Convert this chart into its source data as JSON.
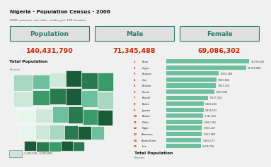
{
  "title": "Nigeria - Population Census - 2006",
  "subtitle": "2006, persons, sex ratio - males per 100 females",
  "header_labels": [
    "Population",
    "Male",
    "Female"
  ],
  "header_values": [
    "140,431,790",
    "71,345,488",
    "69,086,302"
  ],
  "header_bg": "#e0e0e0",
  "header_fg": "#2e7d6e",
  "value_fg": "#cc2200",
  "section_title": "Total Population",
  "section_subtitle": "Persons",
  "bar_title": "Total Population",
  "bar_subtitle": "Persons",
  "bar_color": "#6dbfa0",
  "bar_labels": [
    "Kano",
    "Lagos",
    "Kaduna",
    "Oyo",
    "Katsina",
    "Rivers",
    "Bauchi",
    "Borno",
    "Jigawa",
    "Benue",
    "Delta",
    "Niger",
    "Anambra",
    "Akwa Ibom",
    "Imo"
  ],
  "bar_numbers": [
    "13,076,892",
    "12,550,598",
    "8,252,366",
    "7,840,864",
    "7,831,319",
    "7,503,924",
    "6,537,314",
    "5,860,183",
    "5,828,163",
    "5,741,815",
    "5,663,362",
    "5,556,247",
    "5,527,809",
    "5,482,177",
    "5,408,756"
  ],
  "bar_values": [
    13076892,
    12550598,
    8252366,
    7840864,
    7831319,
    7503924,
    6537314,
    5860183,
    5828163,
    5741815,
    5663362,
    5556247,
    5527809,
    5482177,
    5408756
  ],
  "map_colors": [
    "#1a5c3a",
    "#2a7a50",
    "#3a9a68",
    "#6dbfa0",
    "#a8d8c0",
    "#cde8d8",
    "#e8f5ee"
  ],
  "bg_color": "#f0f0f0",
  "border_color": "#2e7d6e",
  "legend_text": "1,200,000 - 4,300,000",
  "index_color": "#cc2200"
}
